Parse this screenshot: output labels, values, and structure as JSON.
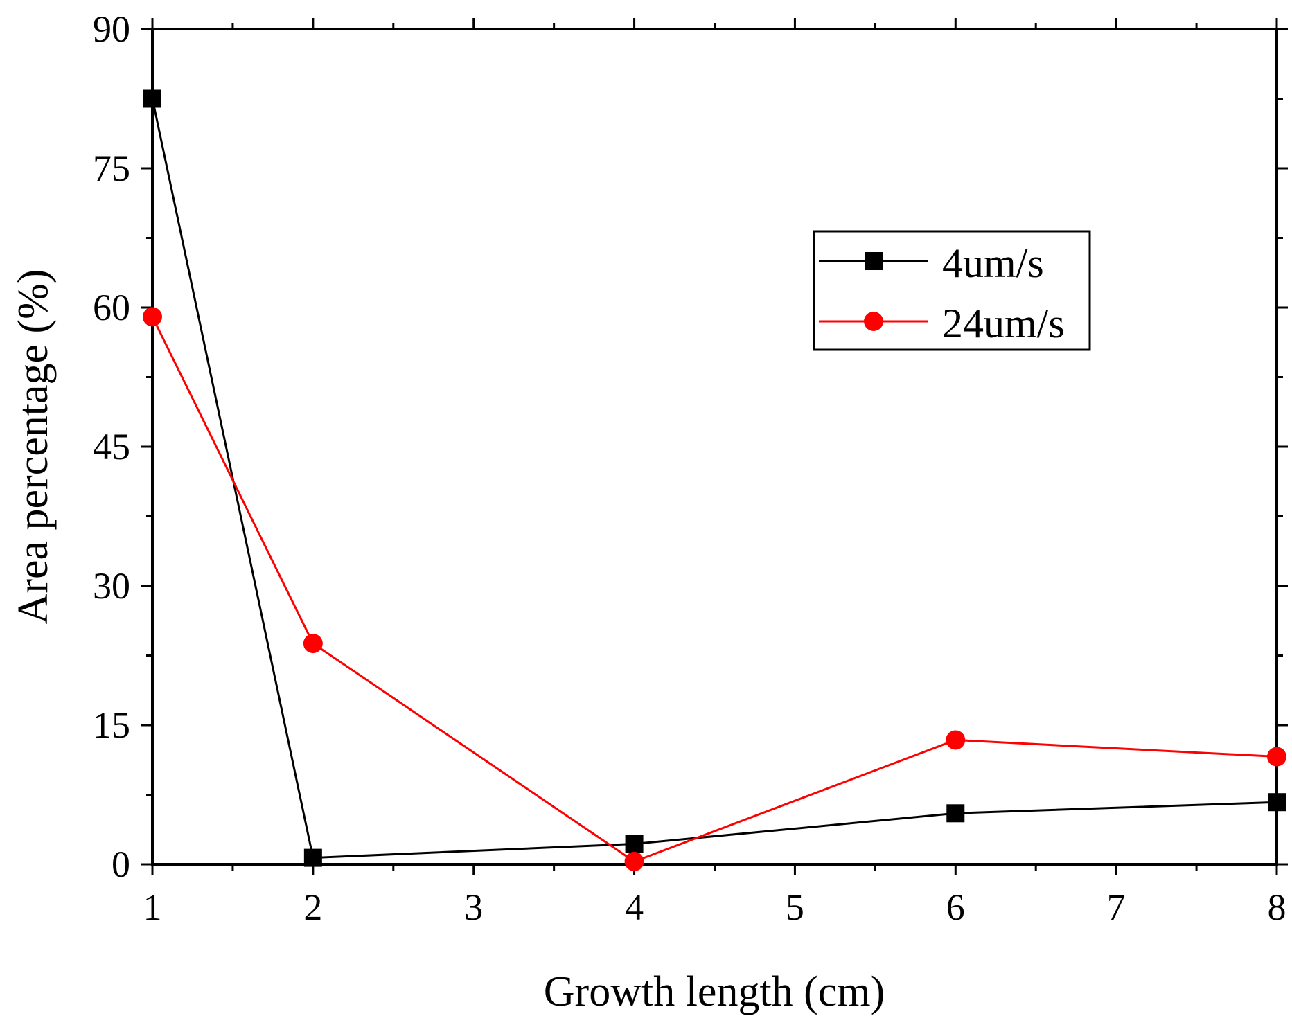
{
  "chart_data": {
    "type": "line",
    "title": "",
    "xlabel": "Growth length (cm)",
    "ylabel": "Area percentage (%)",
    "xlim": [
      1,
      8
    ],
    "ylim": [
      0,
      90
    ],
    "xticks": [
      "1",
      "2",
      "3",
      "4",
      "5",
      "6",
      "7",
      "8"
    ],
    "yticks": [
      "0",
      "15",
      "30",
      "45",
      "60",
      "75",
      "90"
    ],
    "grid": false,
    "legend_position": "top-right",
    "series": [
      {
        "name": "4um/s",
        "color": "#000000",
        "marker": "square",
        "x": [
          1,
          2,
          4,
          6,
          8
        ],
        "y": [
          82.5,
          0.7,
          2.2,
          5.5,
          6.7
        ]
      },
      {
        "name": "24um/s",
        "color": "#ff0000",
        "marker": "circle",
        "x": [
          1,
          2,
          4,
          6,
          8
        ],
        "y": [
          59.0,
          23.8,
          0.3,
          13.4,
          11.6
        ]
      }
    ]
  }
}
